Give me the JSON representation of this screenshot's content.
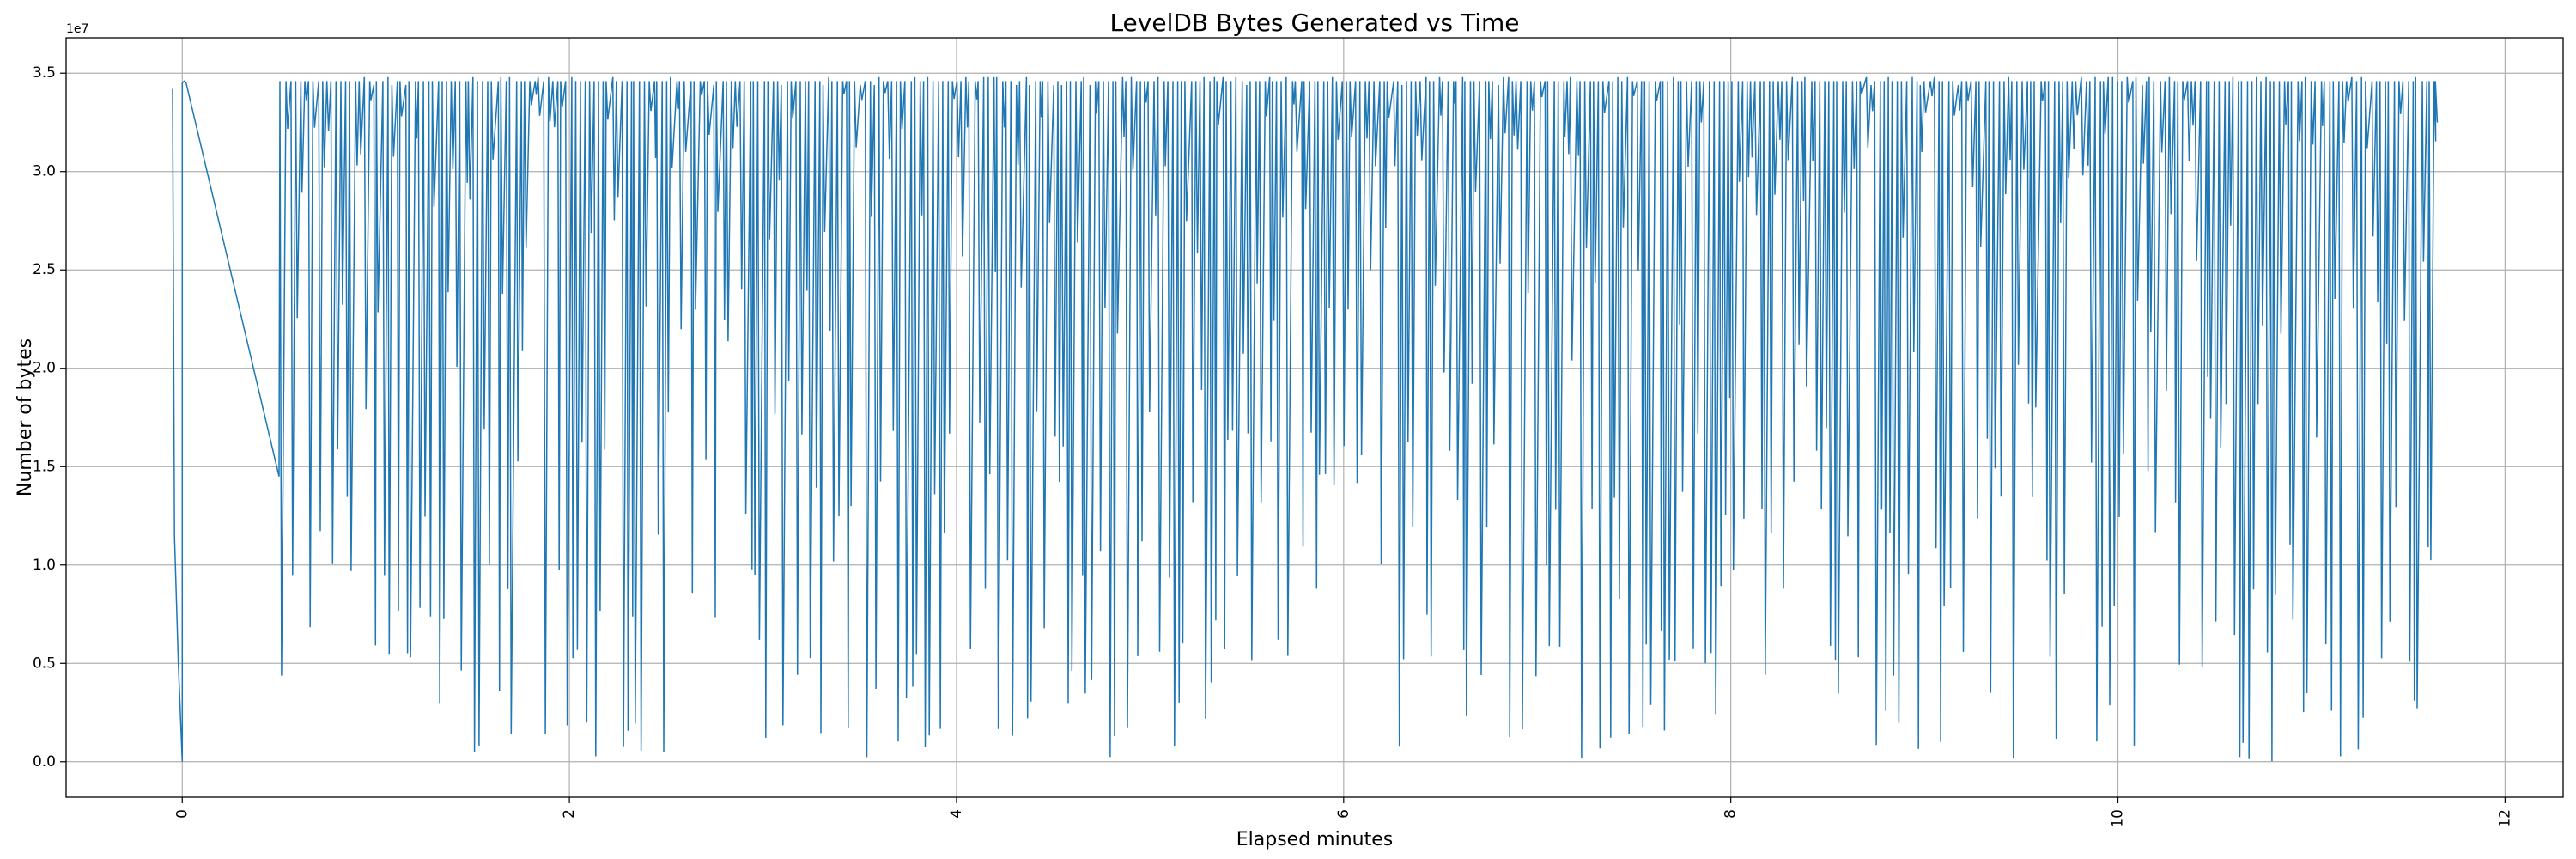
{
  "chart_data": {
    "type": "line",
    "title": "LevelDB Bytes Generated vs Time",
    "xlabel": "Elapsed minutes",
    "ylabel": "Number of bytes",
    "y_multiplier_label": "1e7",
    "xlim": [
      -0.6,
      12.3
    ],
    "ylim": [
      -0.18,
      3.68
    ],
    "y_unit_scale": 10000000,
    "xticks": [
      0,
      2,
      4,
      6,
      8,
      10,
      12
    ],
    "xtick_labels": [
      "0",
      "2",
      "4",
      "6",
      "8",
      "10",
      "12"
    ],
    "xtick_rotation": -90,
    "yticks": [
      0.0,
      0.5,
      1.0,
      1.5,
      2.0,
      2.5,
      3.0,
      3.5
    ],
    "ytick_labels": [
      "0.0",
      "0.5",
      "1.0",
      "1.5",
      "2.0",
      "2.5",
      "3.0",
      "3.5"
    ],
    "grid": true,
    "color": "#1f77b4",
    "series": [
      {
        "baseline": 3.46,
        "x_range": [
          0.5,
          11.65
        ],
        "spike_count": 470,
        "x": [
          -0.05,
          -0.04,
          -0.02,
          0.0,
          0.0,
          0.01,
          0.02,
          0.5,
          0.52,
          0.53,
          0.55,
          0.57,
          0.6,
          0.63,
          0.66,
          0.7,
          0.75,
          0.8,
          0.9,
          1.0,
          1.1,
          1.2,
          1.25,
          1.28,
          1.35,
          1.45,
          1.6,
          1.8,
          1.9,
          2.0,
          2.15,
          2.3,
          2.5,
          2.7,
          2.9,
          3.0,
          3.2,
          3.5,
          3.8,
          4.0,
          4.3,
          4.6,
          4.9,
          5.2,
          5.5,
          5.8,
          6.0,
          6.2,
          6.5,
          6.8,
          7.0,
          7.3,
          7.6,
          7.9,
          8.2,
          8.5,
          8.8,
          9.0,
          9.3,
          9.6,
          9.9,
          10.2,
          10.5,
          10.8,
          11.1,
          11.3,
          11.5,
          11.6,
          11.65
        ],
        "y": [
          3.42,
          1.15,
          0.5,
          0.0,
          3.45,
          3.46,
          3.45,
          1.45,
          3.46,
          0.05,
          3.47,
          0.8,
          3.46,
          2.0,
          3.47,
          0.5,
          3.46,
          1.8,
          3.46,
          0.4,
          3.47,
          0.1,
          3.46,
          1.65,
          3.46,
          0.3,
          3.46,
          0.2,
          3.46,
          0.0,
          3.47,
          0.3,
          3.46,
          0.1,
          3.47,
          0.05,
          3.46,
          0.2,
          3.46,
          0.05,
          3.47,
          0.1,
          3.46,
          0.2,
          3.47,
          0.0,
          3.46,
          0.1,
          3.46,
          0.15,
          3.47,
          0.05,
          3.46,
          0.2,
          3.47,
          0.1,
          3.46,
          0.05,
          3.47,
          0.1,
          3.46,
          0.0,
          3.46,
          0.2,
          3.47,
          0.05,
          3.46,
          1.5,
          3.25
        ]
      }
    ]
  }
}
